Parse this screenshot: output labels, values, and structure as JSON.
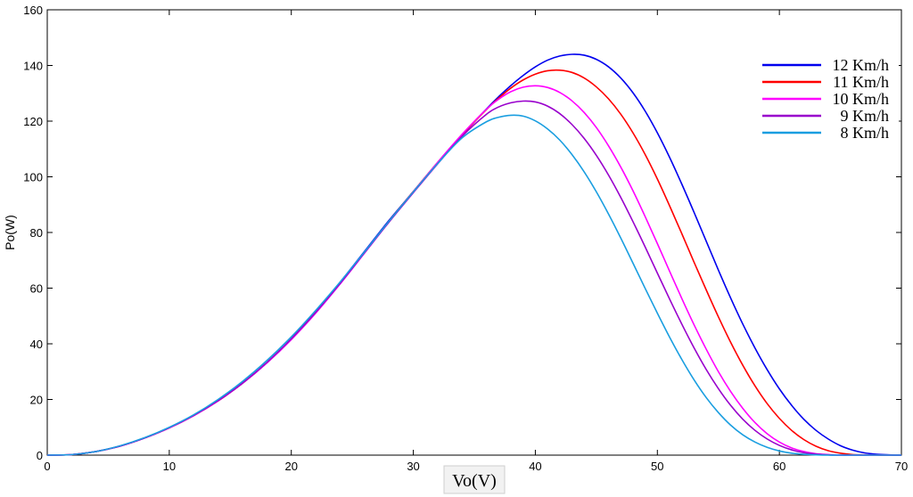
{
  "chart_data": {
    "type": "line",
    "title": "",
    "xlabel": "Vo(V)",
    "ylabel": "Po(W)",
    "xlim": [
      0,
      70
    ],
    "ylim": [
      0,
      160
    ],
    "xticks": [
      0,
      10,
      20,
      30,
      40,
      50,
      60,
      70
    ],
    "yticks": [
      0,
      20,
      40,
      60,
      80,
      100,
      120,
      140,
      160
    ],
    "grid": false,
    "legend_position": "top-right",
    "x": [
      0,
      2,
      4,
      6,
      8,
      10,
      12,
      14,
      16,
      18,
      20,
      22,
      24,
      26,
      28,
      30,
      32,
      34,
      36,
      37,
      38,
      39,
      40,
      41,
      42,
      43,
      44,
      45,
      46,
      47,
      48,
      49,
      50,
      51,
      52,
      53,
      54,
      55,
      56,
      57,
      58,
      59,
      60,
      61,
      62,
      63,
      64,
      65,
      66,
      67,
      68,
      69,
      70
    ],
    "series": [
      {
        "name": "12 Km/h",
        "color": "#0000ee",
        "values": [
          0,
          0.2,
          1.3,
          3.3,
          6.2,
          9.8,
          14.2,
          19.5,
          25.8,
          33.2,
          41.8,
          51.5,
          62.1,
          73.2,
          84.3,
          94.7,
          105.1,
          115.0,
          124.4,
          128.8,
          132.8,
          136.4,
          139.5,
          141.9,
          143.4,
          144.0,
          143.7,
          142.2,
          139.5,
          135.5,
          130.2,
          123.6,
          115.8,
          107.0,
          97.4,
          87.3,
          76.9,
          66.5,
          56.5,
          47.1,
          38.5,
          30.7,
          23.8,
          17.9,
          12.9,
          8.9,
          5.8,
          3.4,
          1.8,
          0.8,
          0.3,
          0.1,
          0
        ]
      },
      {
        "name": "11 Km/h",
        "color": "#ff0000",
        "values": [
          0,
          0.2,
          1.3,
          3.3,
          6.2,
          9.8,
          14.2,
          19.5,
          25.8,
          33.2,
          41.7,
          51.3,
          61.8,
          72.9,
          84.0,
          94.7,
          105.2,
          115.1,
          124.2,
          128.3,
          131.9,
          134.8,
          136.9,
          138.1,
          138.3,
          137.5,
          135.5,
          132.3,
          128.0,
          122.5,
          115.8,
          108.0,
          99.2,
          89.6,
          79.6,
          69.4,
          59.4,
          49.7,
          40.6,
          32.3,
          24.9,
          18.5,
          13.2,
          8.9,
          5.6,
          3.2,
          1.6,
          0.7,
          0.2,
          0.1,
          0,
          0,
          0
        ]
      },
      {
        "name": "10 Km/h",
        "color": "#ff00ff",
        "values": [
          0,
          0.2,
          1.3,
          3.3,
          6.2,
          9.8,
          14.2,
          19.5,
          25.8,
          33.1,
          41.5,
          51.0,
          61.5,
          72.6,
          83.8,
          94.6,
          105.2,
          115.3,
          124.3,
          127.9,
          130.6,
          132.2,
          132.7,
          132.1,
          130.3,
          127.3,
          123.1,
          117.7,
          111.1,
          103.5,
          95.0,
          85.7,
          76.0,
          66.1,
          56.3,
          46.9,
          38.1,
          30.0,
          22.9,
          16.8,
          11.7,
          7.7,
          4.7,
          2.6,
          1.3,
          0.5,
          0.2,
          0,
          0,
          0,
          0,
          0,
          0
        ]
      },
      {
        "name": "9 Km/h",
        "color": "#9900cc",
        "values": [
          0,
          0.2,
          1.3,
          3.3,
          6.2,
          9.9,
          14.3,
          19.6,
          25.9,
          33.3,
          41.8,
          51.3,
          61.7,
          72.7,
          83.7,
          94.3,
          104.7,
          114.6,
          122.5,
          125.1,
          126.6,
          127.2,
          126.9,
          125.4,
          122.7,
          118.8,
          113.8,
          107.7,
          100.6,
          92.6,
          83.9,
          74.8,
          65.4,
          56.1,
          47.1,
          38.6,
          30.8,
          23.9,
          17.9,
          12.9,
          8.9,
          5.8,
          3.5,
          1.9,
          0.9,
          0.4,
          0.1,
          0,
          0,
          0,
          0,
          0,
          0
        ]
      },
      {
        "name": "8 Km/h",
        "color": "#1a9ee0",
        "values": [
          0,
          0.2,
          1.3,
          3.4,
          6.3,
          10.0,
          14.5,
          20.0,
          26.5,
          34.0,
          42.5,
          52.0,
          62.2,
          73.0,
          84.0,
          94.6,
          104.8,
          114.0,
          119.8,
          121.4,
          122.1,
          121.8,
          120.1,
          117.2,
          113.2,
          108.0,
          101.8,
          94.6,
          86.6,
          78.0,
          69.0,
          59.9,
          51.0,
          42.4,
          34.4,
          27.1,
          20.7,
          15.3,
          10.8,
          7.3,
          4.7,
          2.8,
          1.5,
          0.7,
          0.3,
          0.1,
          0,
          0,
          0,
          0,
          0,
          0,
          0
        ]
      }
    ]
  }
}
